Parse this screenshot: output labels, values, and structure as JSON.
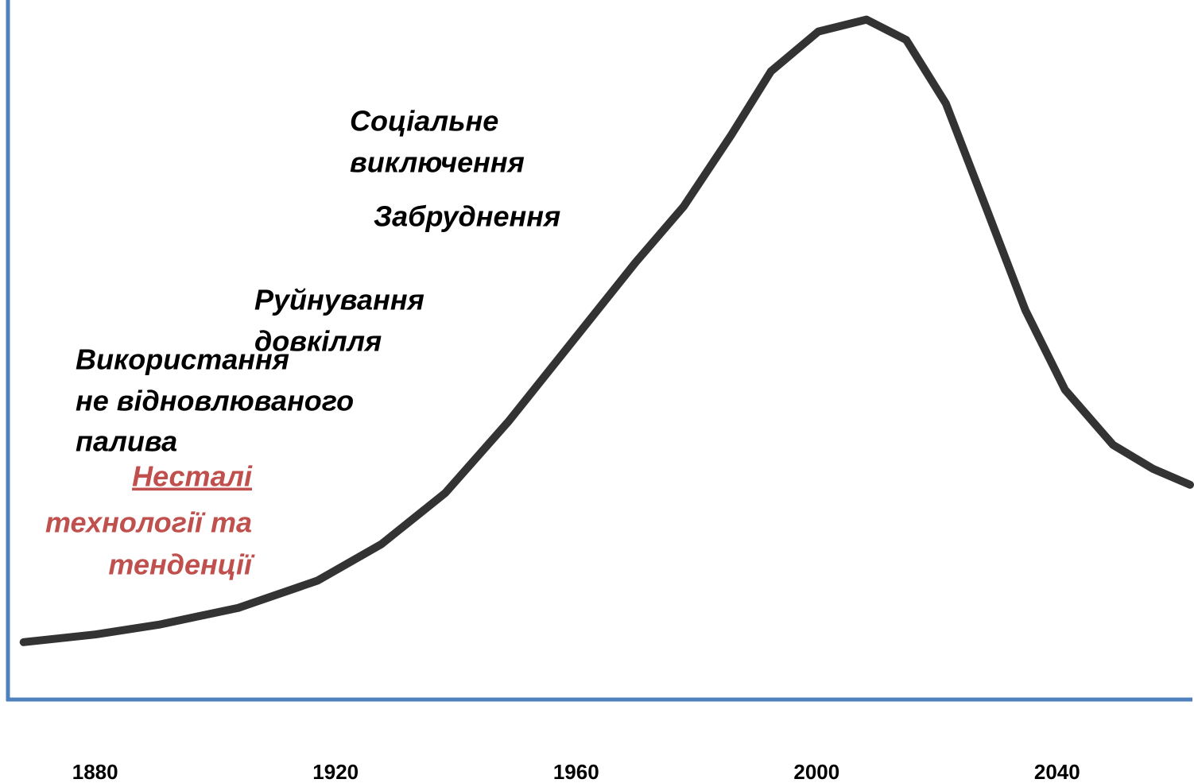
{
  "chart_data": {
    "type": "line",
    "x": [
      1868.1,
      1880,
      1890.6,
      1903.8,
      1917,
      1927.6,
      1938.2,
      1948.8,
      1959.3,
      1969.9,
      1977.9,
      1985.8,
      1992.4,
      2000.3,
      2008.3,
      2014.9,
      2021.5,
      2028.1,
      2034.7,
      2041.3,
      2049.3,
      2055.9,
      2062.1
    ],
    "series": [
      {
        "color": "#333333",
        "values": [
          8.2,
          9.3,
          10.7,
          13.1,
          17,
          22.2,
          29.5,
          39.8,
          51.1,
          62.5,
          70.5,
          80.7,
          89.8,
          95.5,
          97.2,
          94.3,
          85.2,
          70.5,
          55.7,
          44.3,
          36.4,
          33,
          30.7
        ]
      }
    ],
    "xlim": [
      1865.5,
      2062.5
    ],
    "xticks": [
      1880,
      1920,
      1960,
      2000,
      2040
    ],
    "ylim": [
      0,
      100
    ],
    "annotations": [
      {
        "lines": [
          "Соціальне",
          "виключення"
        ],
        "color": "#000000"
      },
      {
        "lines": [
          "Забруднення"
        ],
        "color": "#000000"
      },
      {
        "lines": [
          "Руйнування",
          "довкілля"
        ],
        "color": "#000000"
      },
      {
        "lines": [
          "Використання",
          "не відновлюваного",
          "палива"
        ],
        "color": "#000000"
      },
      {
        "lines": [
          "Нестaлі",
          "технології та",
          "тенденції"
        ],
        "color": "#c0504d"
      }
    ]
  }
}
